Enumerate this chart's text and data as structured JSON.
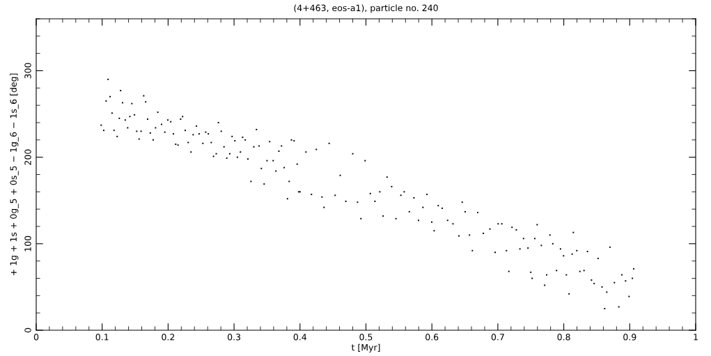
{
  "chart_data": {
    "type": "scatter",
    "title": "(4+463, eos-a1), particle no. 240",
    "xlabel": "t [Myr]",
    "ylabel": "+ 1g + 1s + 0g_5 + 0s_5 − 1g_6 − 1s_6 [deg]",
    "xlim": [
      0,
      1
    ],
    "ylim": [
      0,
      360
    ],
    "xticks": [
      0,
      0.1,
      0.2,
      0.3,
      0.4,
      0.5,
      0.6,
      0.7,
      0.8,
      0.9,
      1
    ],
    "yticks": [
      0,
      100,
      200,
      300
    ],
    "grid": false,
    "marker": "square",
    "color": "#000000",
    "x": [
      0.0985,
      0.1024,
      0.106,
      0.109,
      0.112,
      0.115,
      0.118,
      0.1228,
      0.126,
      0.128,
      0.131,
      0.135,
      0.1387,
      0.142,
      0.145,
      0.149,
      0.1524,
      0.156,
      0.159,
      0.163,
      0.166,
      0.169,
      0.173,
      0.1774,
      0.181,
      0.1844,
      0.19,
      0.195,
      0.1996,
      0.204,
      0.208,
      0.2115,
      0.215,
      0.219,
      0.222,
      0.226,
      0.2305,
      0.2347,
      0.238,
      0.243,
      0.247,
      0.2527,
      0.257,
      0.261,
      0.2654,
      0.2689,
      0.273,
      0.2763,
      0.2806,
      0.2848,
      0.289,
      0.2935,
      0.297,
      0.3013,
      0.305,
      0.3097,
      0.313,
      0.317,
      0.321,
      0.3256,
      0.33,
      0.334,
      0.338,
      0.3414,
      0.3456,
      0.35,
      0.354,
      0.3593,
      0.3635,
      0.368,
      0.372,
      0.376,
      0.381,
      0.3836,
      0.387,
      0.391,
      0.3957,
      0.398,
      0.4,
      0.409,
      0.4174,
      0.4248,
      0.4333,
      0.4364,
      0.4442,
      0.4533,
      0.461,
      0.4695,
      0.48,
      0.4872,
      0.4924,
      0.4987,
      0.5066,
      0.5136,
      0.521,
      0.526,
      0.532,
      0.539,
      0.5455,
      0.553,
      0.558,
      0.5658,
      0.5728,
      0.5797,
      0.5864,
      0.5925,
      0.5998,
      0.6034,
      0.6096,
      0.6156,
      0.6238,
      0.632,
      0.641,
      0.646,
      0.6505,
      0.657,
      0.6614,
      0.6695,
      0.678,
      0.688,
      0.6959,
      0.7004,
      0.706,
      0.7131,
      0.7167,
      0.7215,
      0.728,
      0.7335,
      0.739,
      0.7457,
      0.75,
      0.752,
      0.756,
      0.7596,
      0.766,
      0.771,
      0.774,
      0.779,
      0.7833,
      0.789,
      0.795,
      0.7997,
      0.8039,
      0.808,
      0.8127,
      0.8145,
      0.8197,
      0.8244,
      0.8307,
      0.8359,
      0.842,
      0.846,
      0.852,
      0.858,
      0.862,
      0.8652,
      0.87,
      0.8768,
      0.8835,
      0.888,
      0.8937,
      0.899,
      0.904,
      0.906
    ],
    "values": [
      237,
      231,
      265,
      290,
      270,
      251,
      231,
      224,
      245,
      277,
      263,
      243,
      234,
      247,
      262,
      249,
      230,
      221,
      230,
      271,
      264,
      244,
      228,
      220,
      234,
      252,
      238,
      229,
      243,
      241,
      227,
      215,
      214,
      244,
      247,
      231,
      217,
      206,
      226,
      236,
      227,
      216,
      229,
      227,
      217,
      201,
      204,
      240,
      230,
      212,
      199,
      204,
      224,
      219,
      200,
      206,
      223,
      220,
      198,
      172,
      212,
      232,
      213,
      187,
      169,
      196,
      218,
      196,
      184,
      207,
      213,
      188,
      152,
      172,
      220,
      219,
      192,
      160,
      160,
      206,
      157,
      209,
      154,
      142,
      216,
      156,
      179,
      149,
      204,
      148,
      129,
      196,
      158,
      149,
      160,
      132,
      177,
      166,
      129,
      156,
      160,
      137,
      153,
      127,
      142,
      157,
      125,
      115,
      144,
      141,
      127,
      123,
      109,
      148,
      137,
      110,
      92,
      136,
      112,
      117,
      90,
      123,
      123,
      92,
      68,
      119,
      116,
      94,
      106,
      95,
      67,
      60,
      106,
      122,
      98,
      52,
      64,
      110,
      100,
      69,
      94,
      86,
      64,
      42,
      88,
      113,
      92,
      68,
      69,
      91,
      58,
      54,
      83,
      50,
      25,
      44,
      96,
      55,
      27,
      64,
      57,
      39,
      60,
      71
    ]
  }
}
